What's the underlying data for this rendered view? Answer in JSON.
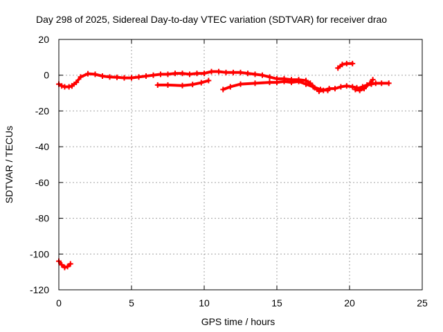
{
  "chart_data": {
    "type": "line",
    "title": "Day 298 of 2025, Sidereal Day-to-day VTEC variation (SDTVAR) for receiver drao",
    "xlabel": "GPS time / hours",
    "ylabel": "SDTVAR / TECUs",
    "xlim": [
      0,
      25
    ],
    "ylim": [
      -120,
      20
    ],
    "xticks": [
      "0",
      "5",
      "10",
      "15",
      "20",
      "25"
    ],
    "yticks": [
      "-120",
      "-100",
      "-80",
      "-60",
      "-40",
      "-20",
      "0",
      "20"
    ],
    "grid": true,
    "series_color": "#ff0000",
    "series": [
      {
        "name": "trace-1",
        "points": [
          [
            0.0,
            -5
          ],
          [
            0.2,
            -6
          ],
          [
            0.4,
            -6.5
          ],
          [
            0.7,
            -6.5
          ],
          [
            0.9,
            -6
          ]
        ]
      },
      {
        "name": "trace-2",
        "points": [
          [
            0.0,
            -104
          ],
          [
            0.2,
            -106
          ],
          [
            0.4,
            -107.5
          ],
          [
            0.6,
            -107
          ],
          [
            0.8,
            -105.5
          ]
        ]
      },
      {
        "name": "trace-3",
        "points": [
          [
            0.9,
            -6
          ],
          [
            1.2,
            -4
          ],
          [
            1.5,
            -1
          ],
          [
            2.0,
            0.8
          ],
          [
            2.5,
            0.5
          ],
          [
            3.0,
            -0.5
          ],
          [
            3.5,
            -1
          ],
          [
            4.0,
            -1.2
          ],
          [
            4.5,
            -1.5
          ],
          [
            5.0,
            -1.5
          ],
          [
            5.5,
            -1
          ],
          [
            6.0,
            -0.5
          ],
          [
            6.5,
            0
          ],
          [
            7.0,
            0.5
          ],
          [
            7.5,
            0.5
          ],
          [
            8.0,
            1
          ],
          [
            8.5,
            1
          ],
          [
            9.0,
            0.5
          ],
          [
            9.5,
            1
          ],
          [
            10.0,
            1
          ],
          [
            10.5,
            2
          ],
          [
            11.0,
            2
          ],
          [
            11.5,
            1.5
          ],
          [
            12.0,
            1.5
          ],
          [
            12.5,
            1.5
          ],
          [
            13.0,
            1
          ],
          [
            13.5,
            0.5
          ],
          [
            14.0,
            0
          ],
          [
            14.5,
            -1
          ],
          [
            15.0,
            -2
          ],
          [
            15.5,
            -2
          ],
          [
            16.0,
            -2.5
          ],
          [
            16.5,
            -2.5
          ],
          [
            17.0,
            -3
          ],
          [
            17.3,
            -4.5
          ],
          [
            17.6,
            -7
          ],
          [
            17.9,
            -9
          ],
          [
            18.2,
            -8.5
          ],
          [
            18.6,
            -7.5
          ],
          [
            19.0,
            -7.5
          ],
          [
            19.4,
            -6.5
          ],
          [
            19.8,
            -6
          ],
          [
            20.2,
            -6.5
          ],
          [
            20.5,
            -7
          ],
          [
            20.8,
            -7.5
          ]
        ]
      },
      {
        "name": "trace-4",
        "points": [
          [
            6.8,
            -5.5
          ],
          [
            7.5,
            -5.5
          ],
          [
            8.5,
            -5.8
          ],
          [
            9.2,
            -5.2
          ],
          [
            9.8,
            -4.2
          ],
          [
            10.3,
            -3
          ]
        ]
      },
      {
        "name": "trace-5",
        "points": [
          [
            11.3,
            -8
          ],
          [
            11.8,
            -6.5
          ],
          [
            12.5,
            -5
          ],
          [
            13.5,
            -4.5
          ],
          [
            14.5,
            -4
          ],
          [
            15.0,
            -4
          ],
          [
            15.5,
            -3.5
          ],
          [
            16.0,
            -4
          ],
          [
            16.5,
            -3.5
          ],
          [
            17.0,
            -5
          ],
          [
            17.5,
            -6.5
          ],
          [
            18.0,
            -8
          ],
          [
            18.5,
            -8.5
          ]
        ]
      },
      {
        "name": "trace-6",
        "points": [
          [
            19.2,
            4
          ],
          [
            19.5,
            6
          ],
          [
            19.8,
            6.5
          ],
          [
            20.2,
            6.5
          ]
        ]
      },
      {
        "name": "trace-7",
        "points": [
          [
            20.5,
            -7.5
          ],
          [
            20.9,
            -6.5
          ],
          [
            21.2,
            -5.5
          ],
          [
            21.5,
            -5
          ],
          [
            21.8,
            -4.5
          ],
          [
            22.2,
            -4.5
          ],
          [
            22.7,
            -4.5
          ]
        ]
      },
      {
        "name": "trace-8",
        "points": [
          [
            20.4,
            -8
          ],
          [
            20.7,
            -8.5
          ],
          [
            21.0,
            -7.5
          ],
          [
            21.4,
            -4.5
          ],
          [
            21.6,
            -2.5
          ]
        ]
      }
    ]
  }
}
